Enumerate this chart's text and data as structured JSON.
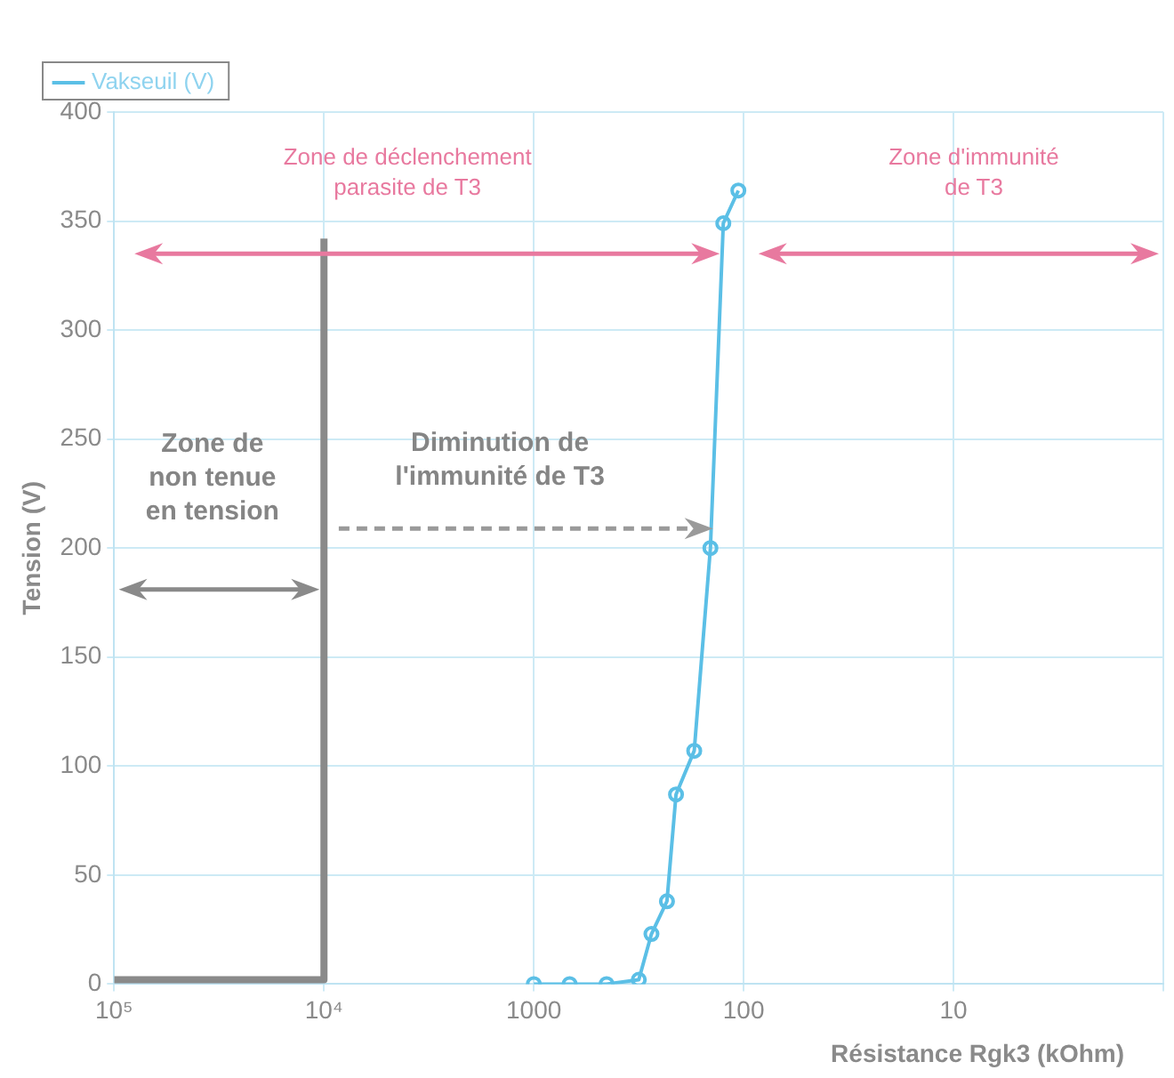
{
  "chart_data": {
    "type": "line",
    "xlabel": "Résistance Rgk3 (kOhm)",
    "ylabel": "Tension (V)",
    "log": "x",
    "xlim": [
      100000,
      1
    ],
    "xticks": [
      {
        "value": 100000,
        "label": "10⁵"
      },
      {
        "value": 10000,
        "label": "10⁴"
      },
      1000,
      100,
      10,
      {
        "value": 1,
        "label": null
      }
    ],
    "ylim": [
      0,
      400
    ],
    "yticks": [
      0,
      50,
      100,
      150,
      200,
      250,
      300,
      350,
      400
    ],
    "grid": true,
    "legend": "top left",
    "marker": "circle",
    "line_style": "solid",
    "series": [
      {
        "name": "Vakseuil (V)",
        "color": "#5bbfe6",
        "x": [
          1000,
          675,
          450,
          316,
          275,
          232,
          210,
          172,
          144,
          125,
          106
        ],
        "values": [
          0,
          0,
          0,
          2,
          23,
          38,
          87,
          107,
          200,
          349,
          364
        ]
      },
      {
        "color": "#8a8a8a",
        "x": [
          100000,
          10000,
          10000
        ],
        "values": [
          2,
          2,
          342
        ],
        "marker": "none"
      }
    ],
    "annotations": [
      "Zone de déclenchement\nparasite de T3",
      "Zone d'immunité\nde T3",
      "Zone de\nnon tenue\nen tension",
      "Diminution de\nl'immunité de T3"
    ]
  }
}
